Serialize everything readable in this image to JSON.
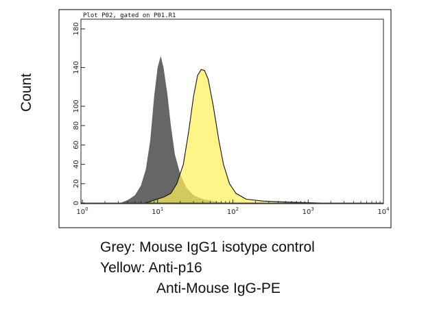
{
  "chart_data": {
    "type": "area",
    "title": "Plot P02, gated on P01.R1",
    "ylabel": "Count",
    "xscale": "log",
    "xlim": [
      1,
      10000
    ],
    "ylim": [
      0,
      190
    ],
    "grid": false,
    "x_ticks": [
      {
        "value": 1,
        "base": "10",
        "exp": "0"
      },
      {
        "value": 10,
        "base": "10",
        "exp": "1"
      },
      {
        "value": 100,
        "base": "10",
        "exp": "2"
      },
      {
        "value": 1000,
        "base": "10",
        "exp": "3"
      },
      {
        "value": 10000,
        "base": "10",
        "exp": "4"
      }
    ],
    "y_ticks": [
      0,
      20,
      40,
      60,
      80,
      100,
      140,
      180
    ],
    "series": [
      {
        "name": "Grey",
        "color": "#666666",
        "points": [
          [
            3.2,
            0
          ],
          [
            4.0,
            3
          ],
          [
            5.0,
            8
          ],
          [
            6.0,
            18
          ],
          [
            7.0,
            35
          ],
          [
            8.0,
            65
          ],
          [
            9.0,
            110
          ],
          [
            10.0,
            140
          ],
          [
            11.0,
            152
          ],
          [
            12.0,
            140
          ],
          [
            13.5,
            112
          ],
          [
            15.0,
            80
          ],
          [
            17.0,
            50
          ],
          [
            20.0,
            30
          ],
          [
            24.0,
            16
          ],
          [
            30.0,
            8
          ],
          [
            40.0,
            4
          ],
          [
            55.0,
            2
          ],
          [
            80.0,
            0
          ]
        ]
      },
      {
        "name": "Yellow",
        "color": "#fff27a",
        "points": [
          [
            7.0,
            0
          ],
          [
            9.0,
            3
          ],
          [
            12.0,
            6
          ],
          [
            15.0,
            10
          ],
          [
            18.0,
            20
          ],
          [
            22.0,
            40
          ],
          [
            26.0,
            75
          ],
          [
            30.0,
            110
          ],
          [
            34.0,
            132
          ],
          [
            38.0,
            138
          ],
          [
            42.0,
            137
          ],
          [
            47.0,
            128
          ],
          [
            55.0,
            100
          ],
          [
            65.0,
            65
          ],
          [
            75.0,
            40
          ],
          [
            90.0,
            20
          ],
          [
            110.0,
            10
          ],
          [
            150.0,
            4
          ],
          [
            250.0,
            2
          ],
          [
            500.0,
            1
          ],
          [
            1500.0,
            0
          ]
        ]
      }
    ],
    "legend": [
      "Grey: Mouse IgG1 isotype control",
      "Yellow: Anti-p16",
      "Anti-Mouse IgG-PE"
    ]
  }
}
